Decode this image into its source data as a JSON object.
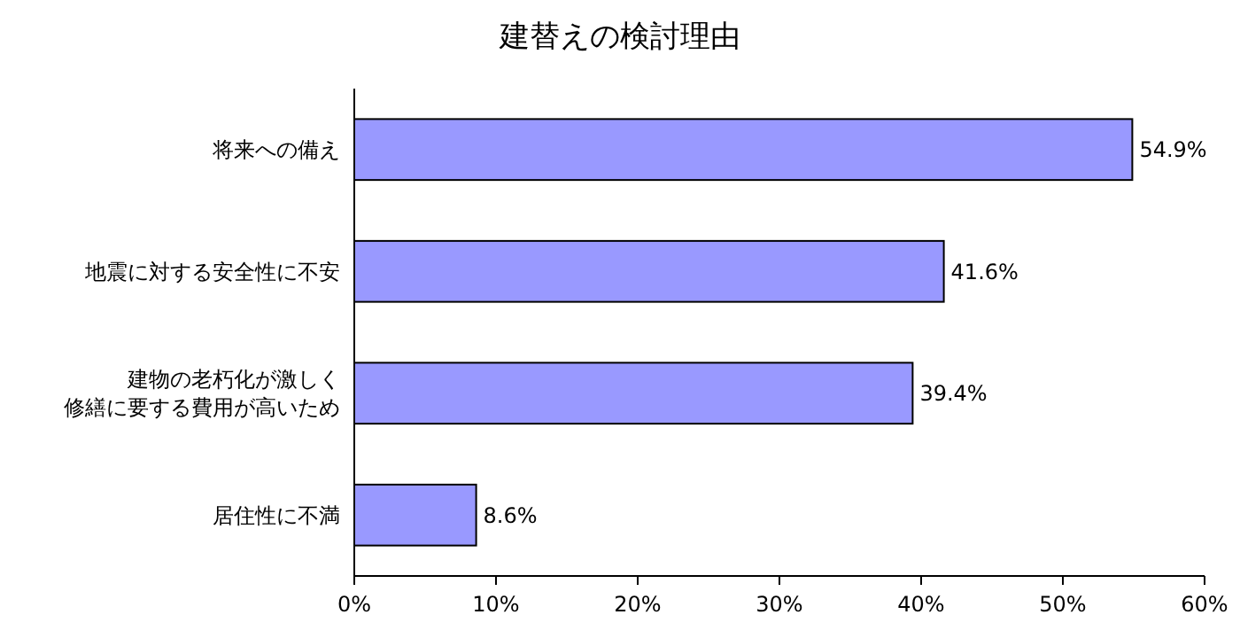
{
  "chart_data": {
    "type": "bar",
    "orientation": "horizontal",
    "title": "建替えの検討理由",
    "categories": [
      "将来への備え",
      "地震に対する安全性に不安",
      "建物の老朽化が激しく修繕に要する費用が高いため",
      "居住性に不満"
    ],
    "values": [
      54.9,
      41.6,
      39.4,
      8.6
    ],
    "value_labels": [
      "54.9%",
      "41.6%",
      "39.4%",
      "8.6%"
    ],
    "color": "#9999ff",
    "xlim": [
      0,
      60
    ],
    "xticks": [
      {
        "value": 0,
        "label": "0%"
      },
      {
        "value": 10,
        "label": "10%"
      },
      {
        "value": 20,
        "label": "20%"
      },
      {
        "value": 30,
        "label": "30%"
      },
      {
        "value": 40,
        "label": "40%"
      },
      {
        "value": 50,
        "label": "50%"
      },
      {
        "value": 60,
        "label": "60%"
      }
    ],
    "grid": false
  }
}
